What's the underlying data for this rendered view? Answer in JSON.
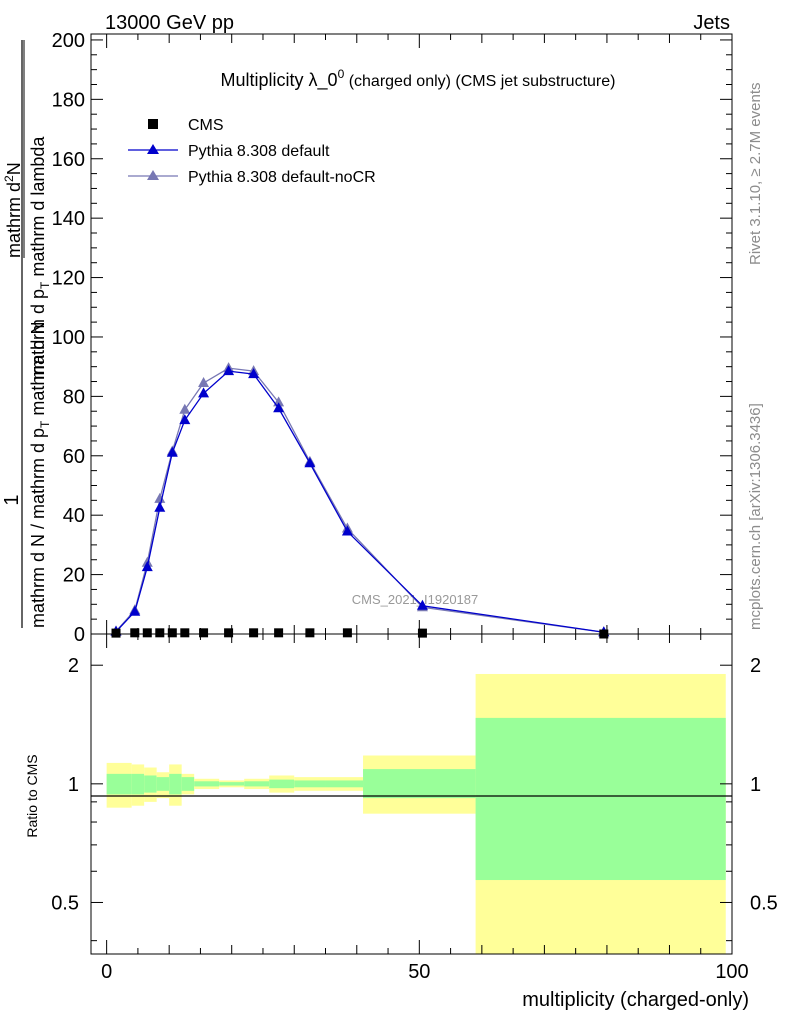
{
  "header": {
    "energy": "13000 GeV pp",
    "process": "Jets"
  },
  "side_labels": {
    "rivet": "Rivet 3.1.10, ≥ 2.7M events",
    "mcplots": "mcplots.cern.ch [arXiv:1306.3436]"
  },
  "colors": {
    "cms": "#000000",
    "pythia_default": "#0000cc",
    "pythia_nocr": "#7878b4",
    "band_inner": "#99ff99",
    "band_outer": "#ffff99"
  },
  "chart_data": [
    {
      "type": "line",
      "title": "Multiplicity λ_0",
      "title_sup": "0",
      "title_suffix": "(charged only) (CMS jet substructure)",
      "watermark": "CMS_2021_I1920187",
      "ylabel_num": "1",
      "ylabel_den": "mathrm d N / mathrm d p",
      "ylabel_den_sub": "T",
      "ylabel_den2": "mathrm d N",
      "ylabel_top": "mathrm d",
      "ylabel_top_sup": "2",
      "ylabel_top2": "N",
      "ylabel_bot": "mathrm d p",
      "ylabel_bot_sub": "T",
      "ylabel_bot2": "mathrm d lambda",
      "xlim": [
        -2.5,
        100
      ],
      "ylim": [
        0,
        202
      ],
      "yticks": [
        0,
        20,
        40,
        60,
        80,
        100,
        120,
        140,
        160,
        180,
        200
      ],
      "legend": {
        "placement": "top-left",
        "entries": [
          "CMS",
          "Pythia 8.308 default",
          "Pythia 8.308 default-noCR"
        ]
      },
      "series": [
        {
          "name": "CMS",
          "marker": "square",
          "x": [
            1.5,
            4.5,
            6.5,
            8.5,
            10.5,
            12.5,
            15.5,
            19.5,
            23.5,
            27.5,
            32.5,
            38.5,
            50.5,
            79.5
          ],
          "y": [
            0.3,
            0.4,
            0.4,
            0.4,
            0.4,
            0.4,
            0.4,
            0.4,
            0.4,
            0.4,
            0.4,
            0.4,
            0.3,
            0.0
          ]
        },
        {
          "name": "Pythia 8.308 default",
          "marker": "triangle",
          "x": [
            1.5,
            4.5,
            6.5,
            8.5,
            10.5,
            12.5,
            15.5,
            19.5,
            23.5,
            27.5,
            32.5,
            38.5,
            50.5,
            79.5
          ],
          "y": [
            0.8,
            7.5,
            22.5,
            42.5,
            61,
            72,
            81,
            88.5,
            87.5,
            76,
            57.5,
            34.5,
            9.5,
            0.6
          ]
        },
        {
          "name": "Pythia 8.308 default-noCR",
          "marker": "triangle",
          "x": [
            1.5,
            4.5,
            6.5,
            8.5,
            10.5,
            12.5,
            15.5,
            19.5,
            23.5,
            27.5,
            32.5,
            38.5,
            50.5,
            79.5
          ],
          "y": [
            0.9,
            8,
            24,
            45.5,
            61.5,
            75.5,
            84.5,
            89.5,
            88.5,
            78,
            58,
            35.5,
            9,
            0.6
          ]
        }
      ]
    },
    {
      "type": "area",
      "ylabel": "Ratio to CMS",
      "xlabel": "multiplicity (charged-only)",
      "xlim": [
        -2.5,
        100
      ],
      "ylim": [
        0.37,
        2.4
      ],
      "scale": "log",
      "yticks": [
        0.5,
        1,
        2
      ],
      "xticks": [
        0,
        50,
        100
      ],
      "reference": 1,
      "bins": [
        {
          "lo": 0,
          "hi": 4,
          "inner": [
            0.94,
            1.06
          ],
          "outer": [
            0.87,
            1.13
          ]
        },
        {
          "lo": 4,
          "hi": 6,
          "inner": [
            0.94,
            1.06
          ],
          "outer": [
            0.88,
            1.12
          ]
        },
        {
          "lo": 6,
          "hi": 8,
          "inner": [
            0.95,
            1.05
          ],
          "outer": [
            0.9,
            1.1
          ]
        },
        {
          "lo": 8,
          "hi": 10,
          "inner": [
            0.96,
            1.04
          ],
          "outer": [
            0.92,
            1.07
          ]
        },
        {
          "lo": 10,
          "hi": 12,
          "inner": [
            0.94,
            1.06
          ],
          "outer": [
            0.88,
            1.12
          ]
        },
        {
          "lo": 12,
          "hi": 14,
          "inner": [
            0.96,
            1.04
          ],
          "outer": [
            0.94,
            1.06
          ]
        },
        {
          "lo": 14,
          "hi": 18,
          "inner": [
            0.985,
            1.015
          ],
          "outer": [
            0.97,
            1.03
          ]
        },
        {
          "lo": 18,
          "hi": 22,
          "inner": [
            0.99,
            1.01
          ],
          "outer": [
            0.98,
            1.02
          ]
        },
        {
          "lo": 22,
          "hi": 26,
          "inner": [
            0.985,
            1.015
          ],
          "outer": [
            0.97,
            1.03
          ]
        },
        {
          "lo": 26,
          "hi": 30,
          "inner": [
            0.975,
            1.025
          ],
          "outer": [
            0.95,
            1.05
          ]
        },
        {
          "lo": 30,
          "hi": 35,
          "inner": [
            0.98,
            1.02
          ],
          "outer": [
            0.96,
            1.04
          ]
        },
        {
          "lo": 35,
          "hi": 41,
          "inner": [
            0.98,
            1.02
          ],
          "outer": [
            0.96,
            1.04
          ]
        },
        {
          "lo": 41,
          "hi": 59,
          "inner": [
            0.92,
            1.09
          ],
          "outer": [
            0.84,
            1.18
          ]
        },
        {
          "lo": 59,
          "hi": 99,
          "inner": [
            0.57,
            1.47
          ],
          "outer": [
            0.37,
            1.9
          ]
        }
      ]
    }
  ]
}
